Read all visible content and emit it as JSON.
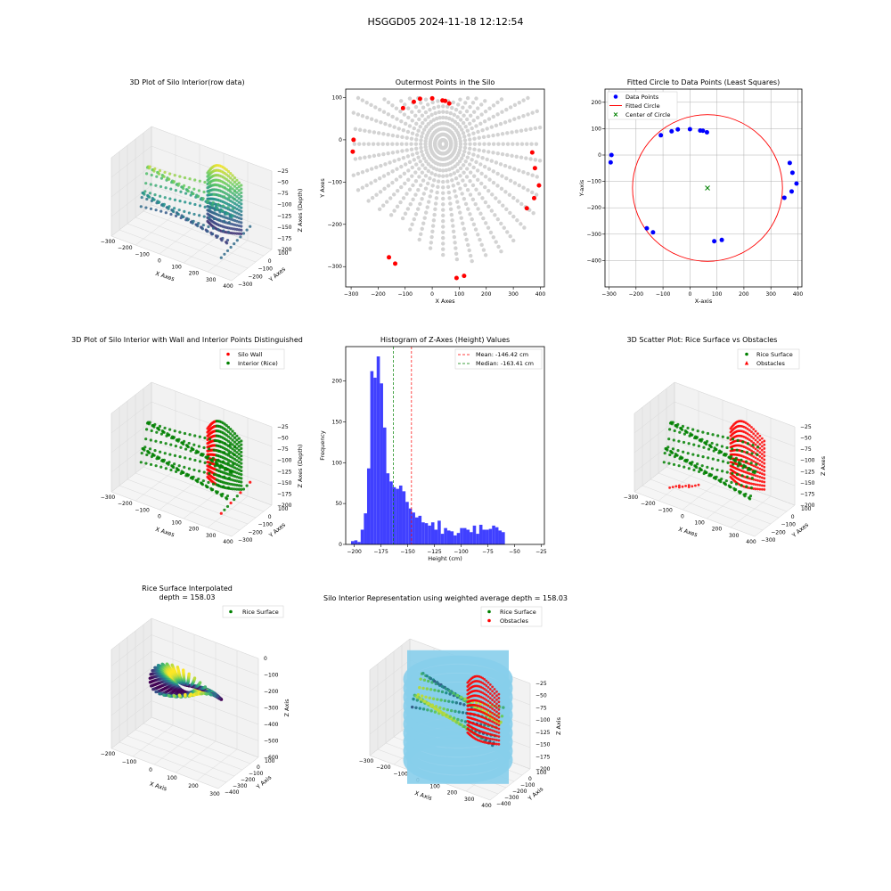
{
  "suptitle": "HSGGD05 2024-11-18 12:12:54",
  "colors": {
    "red": "#ff0000",
    "green": "#008000",
    "blue": "#0000ff",
    "grey": "#d3d3d3",
    "skyblue": "#87ceeb",
    "hist_blue": "#4040ff",
    "viridis": [
      "#440154",
      "#3b528b",
      "#21918c",
      "#5ec962",
      "#fde725"
    ]
  },
  "panels": {
    "p1": {
      "title": "3D Plot of Silo Interior(row data)",
      "xlabel": "X Axes",
      "ylabel": "Y Axes",
      "zlabel": "Z Axes (Depth)",
      "xticks": [
        "−300",
        "−200",
        "−100",
        "0",
        "100",
        "200",
        "300",
        "400"
      ],
      "yticks": [
        "100",
        "0",
        "−100",
        "−200",
        "−300"
      ],
      "zticks": [
        "−25",
        "−50",
        "−75",
        "−100",
        "−125",
        "−150",
        "−175",
        "−200"
      ]
    },
    "p2": {
      "title": "Outermost Points in the Silo",
      "xlabel": "X Axes",
      "ylabel": "Y Axes",
      "xticks": [
        "−300",
        "−200",
        "−100",
        "0",
        "100",
        "200",
        "300",
        "400"
      ],
      "yticks": [
        "100",
        "0",
        "−100",
        "−200",
        "−300"
      ]
    },
    "p3": {
      "title": "Fitted Circle to Data Points (Least Squares)",
      "xlabel": "X-axis",
      "ylabel": "Y-axis",
      "xticks": [
        "−300",
        "−200",
        "−100",
        "0",
        "100",
        "200",
        "300",
        "400"
      ],
      "yticks": [
        "200",
        "100",
        "0",
        "−100",
        "−200",
        "−300",
        "−400"
      ],
      "legend": [
        "Data Points",
        "Fitted Circle",
        "Center of Circle"
      ]
    },
    "p4": {
      "title": "3D Plot of Silo Interior with Wall and Interior Points Distinguished",
      "xlabel": "X Axes",
      "ylabel": "Y Axes",
      "zlabel": "Z Axes (Depth)",
      "xticks": [
        "−300",
        "−200",
        "−100",
        "0",
        "100",
        "200",
        "300",
        "400"
      ],
      "yticks": [
        "100",
        "0",
        "−100",
        "−200",
        "−300"
      ],
      "zticks": [
        "−25",
        "−50",
        "−75",
        "−100",
        "−125",
        "−150",
        "−175",
        "−200"
      ],
      "legend": [
        "Silo Wall",
        "Interior (Rice)"
      ]
    },
    "p5": {
      "title": "Histogram of Z-Axes (Height) Values",
      "xlabel": "Height (cm)",
      "ylabel": "Frequency",
      "xticks": [
        "−200",
        "−175",
        "−150",
        "−125",
        "−100",
        "−75",
        "−50",
        "−25"
      ],
      "yticks": [
        "0",
        "50",
        "100",
        "150",
        "200"
      ],
      "legend": [
        "Mean: -146.42 cm",
        "Median: -163.41 cm"
      ]
    },
    "p6": {
      "title": "3D Scatter Plot: Rice Surface vs Obstacles",
      "xlabel": "X Axes",
      "ylabel": "Y Axes",
      "zlabel": "Z Axes",
      "xticks": [
        "−300",
        "−200",
        "−100",
        "0",
        "100",
        "200",
        "300",
        "400"
      ],
      "yticks": [
        "100",
        "0",
        "−100",
        "−200",
        "−300"
      ],
      "zticks": [
        "−25",
        "−50",
        "−75",
        "−100",
        "−125",
        "−150",
        "−175",
        "−200"
      ],
      "legend": [
        "Rice Surface",
        "Obstacles"
      ]
    },
    "p7": {
      "title": "Rice Surface Interpolated",
      "title2": "depth = 158.03",
      "xlabel": "X Axis",
      "ylabel": "Y Axis",
      "zlabel": "Z Axis",
      "xticks": [
        "−200",
        "−100",
        "0",
        "100",
        "200",
        "300"
      ],
      "yticks": [
        "100",
        "0",
        "−100",
        "−200",
        "−300",
        "−400"
      ],
      "zticks": [
        "0",
        "−100",
        "−200",
        "−300",
        "−400",
        "−500",
        "−600"
      ],
      "legend": [
        "Rice Surface"
      ]
    },
    "p8": {
      "title": "Silo Interior Representation using weighted average depth = 158.03",
      "xlabel": "X Axis",
      "ylabel": "Y Axis",
      "zlabel": "Z Axis",
      "xticks": [
        "−300",
        "−200",
        "−100",
        "0",
        "100",
        "200",
        "300",
        "400"
      ],
      "yticks": [
        "100",
        "0",
        "−100",
        "−200",
        "−300",
        "−400"
      ],
      "zticks": [
        "−25",
        "−50",
        "−75",
        "−100",
        "−125",
        "−150",
        "−175",
        "−200"
      ],
      "legend": [
        "Rice Surface",
        "Obstacles"
      ]
    }
  },
  "chart_data": [
    {
      "type": "scatter",
      "title": "Outermost Points in the Silo",
      "xlabel": "X Axes",
      "ylabel": "Y Axes",
      "xlim": [
        -320,
        415
      ],
      "ylim": [
        -348,
        120
      ],
      "series": [
        {
          "color": "red",
          "points": [
            [
              -291,
              0
            ],
            [
              -294,
              -28
            ],
            [
              -108,
              75
            ],
            [
              -68,
              90
            ],
            [
              -45,
              97
            ],
            [
              0,
              98
            ],
            [
              38,
              93
            ],
            [
              48,
              92
            ],
            [
              63,
              86
            ],
            [
              -160,
              -278
            ],
            [
              -137,
              -293
            ],
            [
              90,
              -327
            ],
            [
              118,
              -322
            ],
            [
              370,
              -30
            ],
            [
              380,
              -67
            ],
            [
              395,
              -108
            ],
            [
              377,
              -138
            ],
            [
              350,
              -162
            ]
          ]
        }
      ]
    },
    {
      "type": "scatter",
      "title": "Fitted Circle to Data Points (Least Squares)",
      "xlabel": "X-axis",
      "ylabel": "Y-axis",
      "xlim": [
        -315,
        415
      ],
      "ylim": [
        -500,
        250
      ],
      "series": [
        {
          "name": "Data Points",
          "points": [
            [
              -291,
              0
            ],
            [
              -294,
              -28
            ],
            [
              -108,
              75
            ],
            [
              -68,
              90
            ],
            [
              -45,
              97
            ],
            [
              0,
              98
            ],
            [
              38,
              93
            ],
            [
              48,
              92
            ],
            [
              63,
              86
            ],
            [
              -160,
              -278
            ],
            [
              -137,
              -293
            ],
            [
              90,
              -327
            ],
            [
              118,
              -322
            ],
            [
              370,
              -30
            ],
            [
              380,
              -67
            ],
            [
              395,
              -108
            ],
            [
              377,
              -138
            ],
            [
              350,
              -162
            ]
          ]
        },
        {
          "name": "Center of Circle",
          "points": [
            [
              65,
              -125
            ]
          ]
        }
      ],
      "circle": {
        "name": "Fitted Circle",
        "center": [
          65,
          -125
        ],
        "radius": 278
      }
    },
    {
      "type": "bar",
      "title": "Histogram of Z-Axes (Height) Values",
      "xlabel": "Height (cm)",
      "ylabel": "Frequency",
      "xlim": [
        -208,
        -22
      ],
      "ylim": [
        0,
        242
      ],
      "bin_start": -203,
      "bin_width": 3,
      "values": [
        4,
        5,
        3,
        18,
        38,
        93,
        212,
        204,
        230,
        197,
        143,
        87,
        77,
        70,
        68,
        72,
        65,
        52,
        44,
        39,
        33,
        35,
        27,
        26,
        23,
        27,
        18,
        29,
        13,
        20,
        17,
        16,
        11,
        14,
        20,
        20,
        18,
        15,
        23,
        13,
        24,
        18,
        18,
        19,
        23,
        21,
        17,
        15
      ],
      "mean": -146.42,
      "median": -163.41
    }
  ]
}
